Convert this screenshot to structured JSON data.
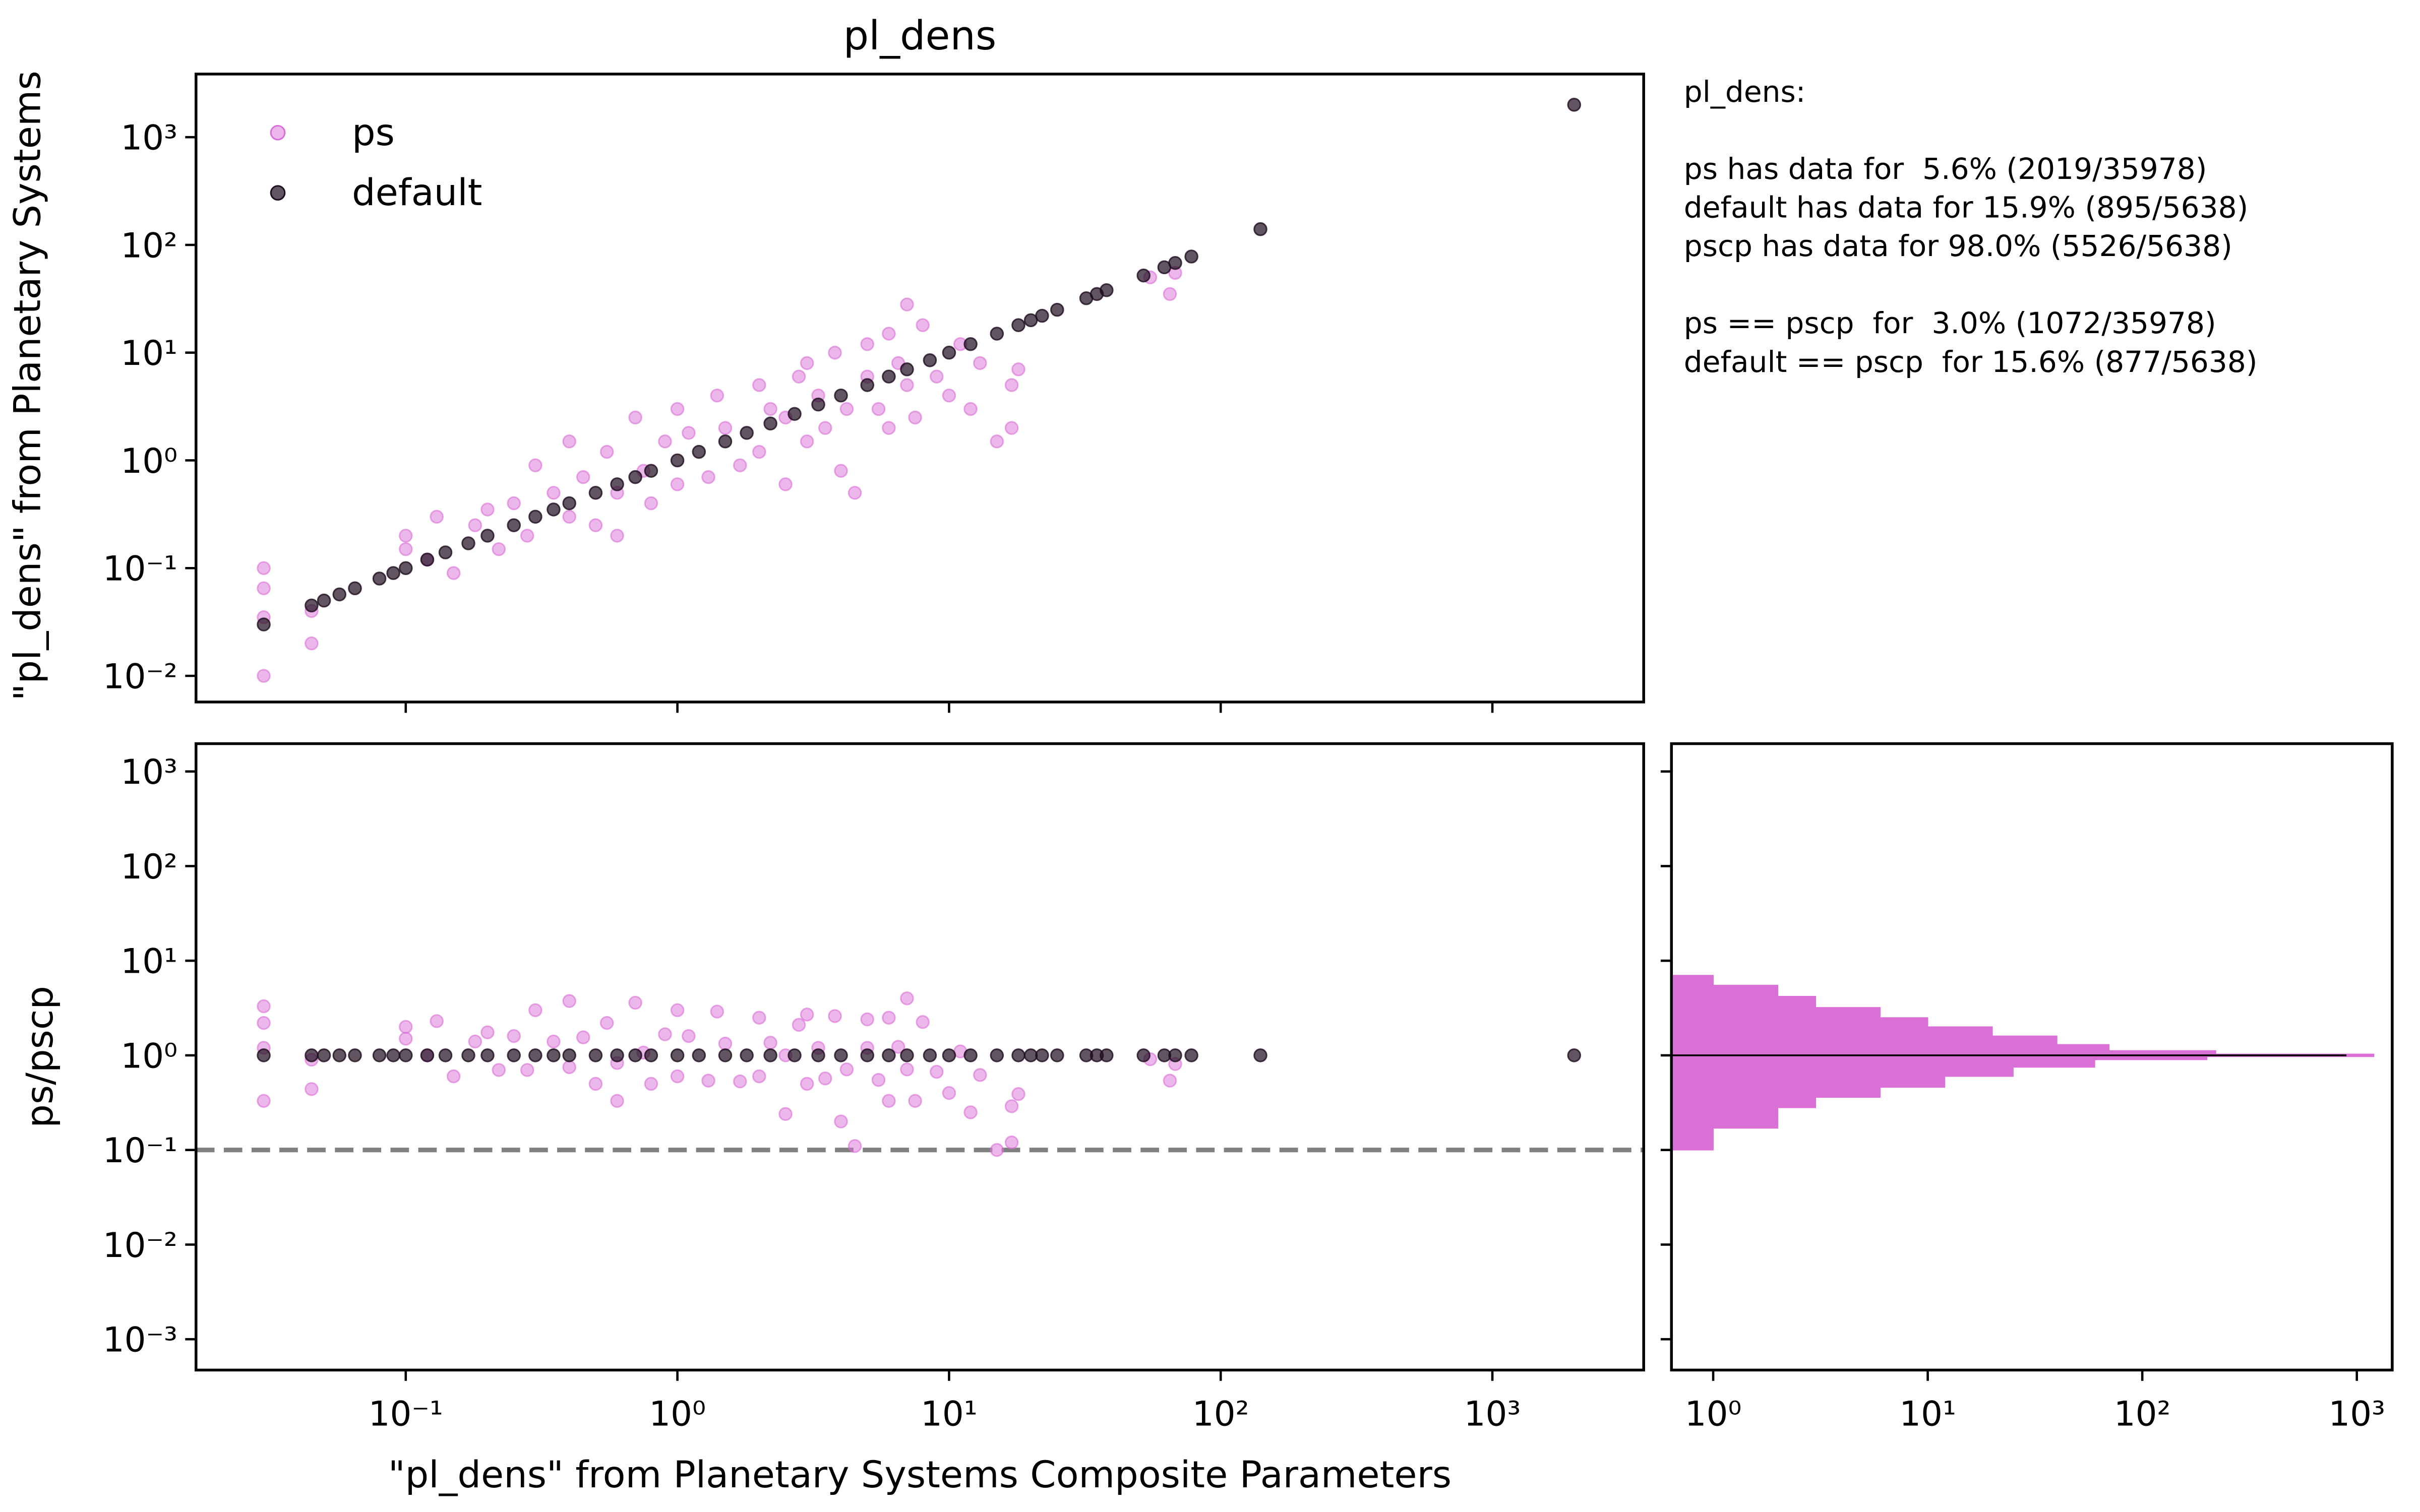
{
  "chart_data": [
    {
      "type": "scatter",
      "title": "pl_dens",
      "ylabel": "\"pl_dens\" from Planetary Systems",
      "xscale": "log",
      "yscale": "log",
      "xlim": [
        0.0169,
        3606
      ],
      "ylim": [
        0.00572,
        3854
      ],
      "xticks": [
        0.1,
        1,
        10,
        100,
        1000
      ],
      "show_xtick_labels": false,
      "yticks": [
        {
          "value": 0.01,
          "label": "10⁻²"
        },
        {
          "value": 0.1,
          "label": "10⁻¹"
        },
        {
          "value": 1,
          "label": "10⁰"
        },
        {
          "value": 10,
          "label": "10¹"
        },
        {
          "value": 100,
          "label": "10²"
        },
        {
          "value": 1000,
          "label": "10³"
        }
      ],
      "legend": "upper left",
      "series": [
        {
          "name": "ps",
          "color": "#da70d6",
          "x": [
            0.03,
            0.03,
            0.03,
            0.03,
            0.045,
            0.045,
            0.1,
            0.1,
            0.12,
            0.13,
            0.15,
            0.18,
            0.2,
            0.22,
            0.25,
            0.28,
            0.3,
            0.35,
            0.4,
            0.4,
            0.45,
            0.5,
            0.55,
            0.6,
            0.6,
            0.7,
            0.75,
            0.8,
            0.9,
            1,
            1,
            1.1,
            1.3,
            1.4,
            1.5,
            1.7,
            2,
            2,
            2.2,
            2.5,
            2.5,
            2.8,
            3,
            3,
            3.3,
            3.5,
            3.8,
            4,
            4.2,
            4.5,
            5,
            5,
            5.5,
            6,
            6,
            6.5,
            7,
            7,
            7.5,
            8,
            9,
            10,
            11,
            12,
            13,
            15,
            17,
            17,
            18,
            55,
            65,
            68
          ],
          "y": [
            0.1,
            0.065,
            0.035,
            0.01,
            0.04,
            0.02,
            0.2,
            0.15,
            0.12,
            0.3,
            0.09,
            0.25,
            0.35,
            0.15,
            0.4,
            0.2,
            0.9,
            0.5,
            1.5,
            0.3,
            0.7,
            0.25,
            1.2,
            0.5,
            0.2,
            2.5,
            0.8,
            0.4,
            1.5,
            0.6,
            3,
            1.8,
            0.7,
            4,
            2,
            0.9,
            1.2,
            5,
            3,
            0.6,
            2.5,
            6,
            1.5,
            8,
            4,
            2,
            10,
            0.8,
            3,
            0.5,
            12,
            6,
            3,
            15,
            2,
            8,
            28,
            5,
            2.5,
            18,
            6,
            4,
            12,
            3,
            8,
            1.5,
            5,
            2,
            7,
            50,
            35,
            55
          ]
        },
        {
          "name": "default",
          "color": "#1e0d1e",
          "x": [
            0.03,
            0.045,
            0.05,
            0.057,
            0.065,
            0.08,
            0.09,
            0.1,
            0.12,
            0.14,
            0.17,
            0.2,
            0.25,
            0.3,
            0.35,
            0.4,
            0.5,
            0.6,
            0.7,
            0.8,
            1,
            1.2,
            1.5,
            1.8,
            2.2,
            2.7,
            3.3,
            4,
            5,
            6,
            7,
            8.5,
            10,
            12,
            15,
            18,
            20,
            22,
            25,
            32,
            35,
            38,
            52,
            62,
            68,
            78,
            140,
            2000
          ],
          "y": [
            0.03,
            0.045,
            0.05,
            0.057,
            0.065,
            0.08,
            0.09,
            0.1,
            0.12,
            0.14,
            0.17,
            0.2,
            0.25,
            0.3,
            0.35,
            0.4,
            0.5,
            0.6,
            0.7,
            0.8,
            1,
            1.2,
            1.5,
            1.8,
            2.2,
            2.7,
            3.3,
            4,
            5,
            6,
            7,
            8.5,
            10,
            12,
            15,
            18,
            20,
            22,
            25,
            32,
            35,
            38,
            52,
            62,
            68,
            78,
            140,
            2000
          ]
        }
      ]
    },
    {
      "type": "scatter",
      "xlabel": "\"pl_dens\" from Planetary Systems Composite Parameters",
      "ylabel": "ps/pscp",
      "xscale": "log",
      "yscale": "log",
      "xlim": [
        0.0169,
        3606
      ],
      "ylim": [
        0.000472,
        1968
      ],
      "xticks": [
        {
          "value": 0.1,
          "label": "10⁻¹"
        },
        {
          "value": 1,
          "label": "10⁰"
        },
        {
          "value": 10,
          "label": "10¹"
        },
        {
          "value": 100,
          "label": "10²"
        },
        {
          "value": 1000,
          "label": "10³"
        }
      ],
      "yticks": [
        {
          "value": 0.001,
          "label": "10⁻³"
        },
        {
          "value": 0.01,
          "label": "10⁻²"
        },
        {
          "value": 0.1,
          "label": "10⁻¹"
        },
        {
          "value": 1,
          "label": "10⁰"
        },
        {
          "value": 10,
          "label": "10¹"
        },
        {
          "value": 100,
          "label": "10²"
        },
        {
          "value": 1000,
          "label": "10³"
        }
      ],
      "hline": 0.1,
      "hline_color": "#808080",
      "series": [
        {
          "color": "#da70d6",
          "x": [
            0.03,
            0.03,
            0.03,
            0.03,
            0.045,
            0.045,
            0.1,
            0.1,
            0.12,
            0.13,
            0.15,
            0.18,
            0.2,
            0.22,
            0.25,
            0.28,
            0.3,
            0.35,
            0.4,
            0.4,
            0.45,
            0.5,
            0.55,
            0.6,
            0.6,
            0.7,
            0.75,
            0.8,
            0.9,
            1,
            1,
            1.1,
            1.3,
            1.4,
            1.5,
            1.7,
            2,
            2,
            2.2,
            2.5,
            2.5,
            2.8,
            3,
            3,
            3.3,
            3.5,
            3.8,
            4,
            4.2,
            4.5,
            5,
            5,
            5.5,
            6,
            6,
            6.5,
            7,
            7,
            7.5,
            8,
            9,
            10,
            11,
            12,
            13,
            15,
            17,
            17,
            18,
            55,
            65,
            68
          ],
          "y": [
            3.3,
            2.2,
            1.2,
            0.33,
            0.9,
            0.44,
            2,
            1.5,
            1,
            2.3,
            0.6,
            1.4,
            1.75,
            0.7,
            1.6,
            0.7,
            3,
            1.4,
            3.75,
            0.75,
            1.55,
            0.5,
            2.2,
            0.83,
            0.33,
            3.6,
            1.07,
            0.5,
            1.67,
            0.6,
            3,
            1.6,
            0.54,
            2.9,
            1.33,
            0.53,
            0.6,
            2.5,
            1.36,
            0.24,
            1,
            2.1,
            0.5,
            2.7,
            1.2,
            0.57,
            2.6,
            0.2,
            0.71,
            0.11,
            2.4,
            1.2,
            0.55,
            2.5,
            0.33,
            1.23,
            4,
            0.71,
            0.33,
            2.25,
            0.67,
            0.4,
            1.1,
            0.25,
            0.62,
            0.1,
            0.29,
            0.12,
            0.39,
            0.91,
            0.54,
            0.81
          ]
        },
        {
          "color": "#1e0d1e",
          "x": [
            0.03,
            0.045,
            0.05,
            0.057,
            0.065,
            0.08,
            0.09,
            0.1,
            0.12,
            0.14,
            0.17,
            0.2,
            0.25,
            0.3,
            0.35,
            0.4,
            0.5,
            0.6,
            0.7,
            0.8,
            1,
            1.2,
            1.5,
            1.8,
            2.2,
            2.7,
            3.3,
            4,
            5,
            6,
            7,
            8.5,
            10,
            12,
            15,
            18,
            20,
            22,
            25,
            32,
            35,
            38,
            52,
            62,
            68,
            78,
            140,
            2000
          ],
          "y": [
            1,
            1,
            1,
            1,
            1,
            1,
            1,
            1,
            1,
            1,
            1,
            1,
            1,
            1,
            1,
            1,
            1,
            1,
            1,
            1,
            1,
            1,
            1,
            1,
            1,
            1,
            1,
            1,
            1,
            1,
            1,
            1,
            1,
            1,
            1,
            1,
            1,
            1,
            1,
            1,
            1,
            1,
            1,
            1,
            1,
            1,
            1,
            1
          ]
        }
      ]
    },
    {
      "type": "histogram",
      "orientation": "horizontal",
      "xscale": "log",
      "yscale": "log",
      "xlim": [
        0.639,
        1462
      ],
      "ylim": [
        0.000472,
        1968
      ],
      "xticks": [
        {
          "value": 1,
          "label": "10⁰"
        },
        {
          "value": 10,
          "label": "10¹"
        },
        {
          "value": 100,
          "label": "10²"
        },
        {
          "value": 1000,
          "label": "10³"
        }
      ],
      "yticks": [
        0.001,
        0.01,
        0.1,
        1,
        10,
        100,
        1000
      ],
      "show_ytick_labels": false,
      "series": [
        {
          "color": "#da70d6",
          "bins": [
            0.1,
            0.13,
            0.17,
            0.22,
            0.28,
            0.36,
            0.46,
            0.6,
            0.75,
            0.9,
            0.97,
            1.03,
            1.12,
            1.3,
            1.6,
            2,
            2.5,
            3.2,
            4.2,
            5.5,
            7
          ],
          "counts": [
            1,
            1,
            2,
            2,
            3,
            6,
            12,
            25,
            60,
            200,
            1200,
            220,
            70,
            40,
            20,
            10,
            6,
            3,
            2,
            1
          ]
        },
        {
          "color": "#000000",
          "bins": [
            0.99,
            1.01
          ],
          "counts": [
            890
          ]
        }
      ]
    }
  ],
  "stats": [
    [
      "pl_dens:"
    ],
    [
      "ps has data for  5.6% (2019/35978)",
      "default has data for 15.9% (895/5638)",
      "pscp has data for 98.0% (5526/5638)"
    ],
    [
      "ps == pscp  for  3.0% (1072/35978)",
      "default == pscp  for 15.6% (877/5638)"
    ]
  ]
}
